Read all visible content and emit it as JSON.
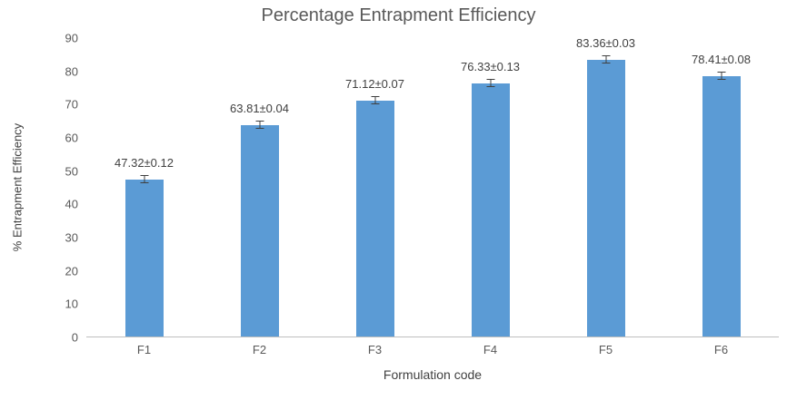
{
  "chart_data": {
    "type": "bar",
    "title": "Percentage Entrapment Efficiency",
    "xlabel": "Formulation code",
    "ylabel": "% Entrapment Efficiency",
    "categories": [
      "F1",
      "F2",
      "F3",
      "F4",
      "F5",
      "F6"
    ],
    "values": [
      47.32,
      63.81,
      71.12,
      76.33,
      83.36,
      78.41
    ],
    "errors": [
      0.12,
      0.04,
      0.07,
      0.13,
      0.03,
      0.08
    ],
    "data_labels": [
      "47.32±0.12",
      "63.81±0.04",
      "71.12±0.07",
      "76.33±0.13",
      "83.36±0.03",
      "78.41±0.08"
    ],
    "ylim": [
      0,
      90
    ],
    "yticks": [
      0,
      10,
      20,
      30,
      40,
      50,
      60,
      70,
      80,
      90
    ],
    "grid": false,
    "legend": "none",
    "bar_color": "#5B9BD5",
    "error_bar_color": "#404040",
    "text_color": "#595959"
  }
}
